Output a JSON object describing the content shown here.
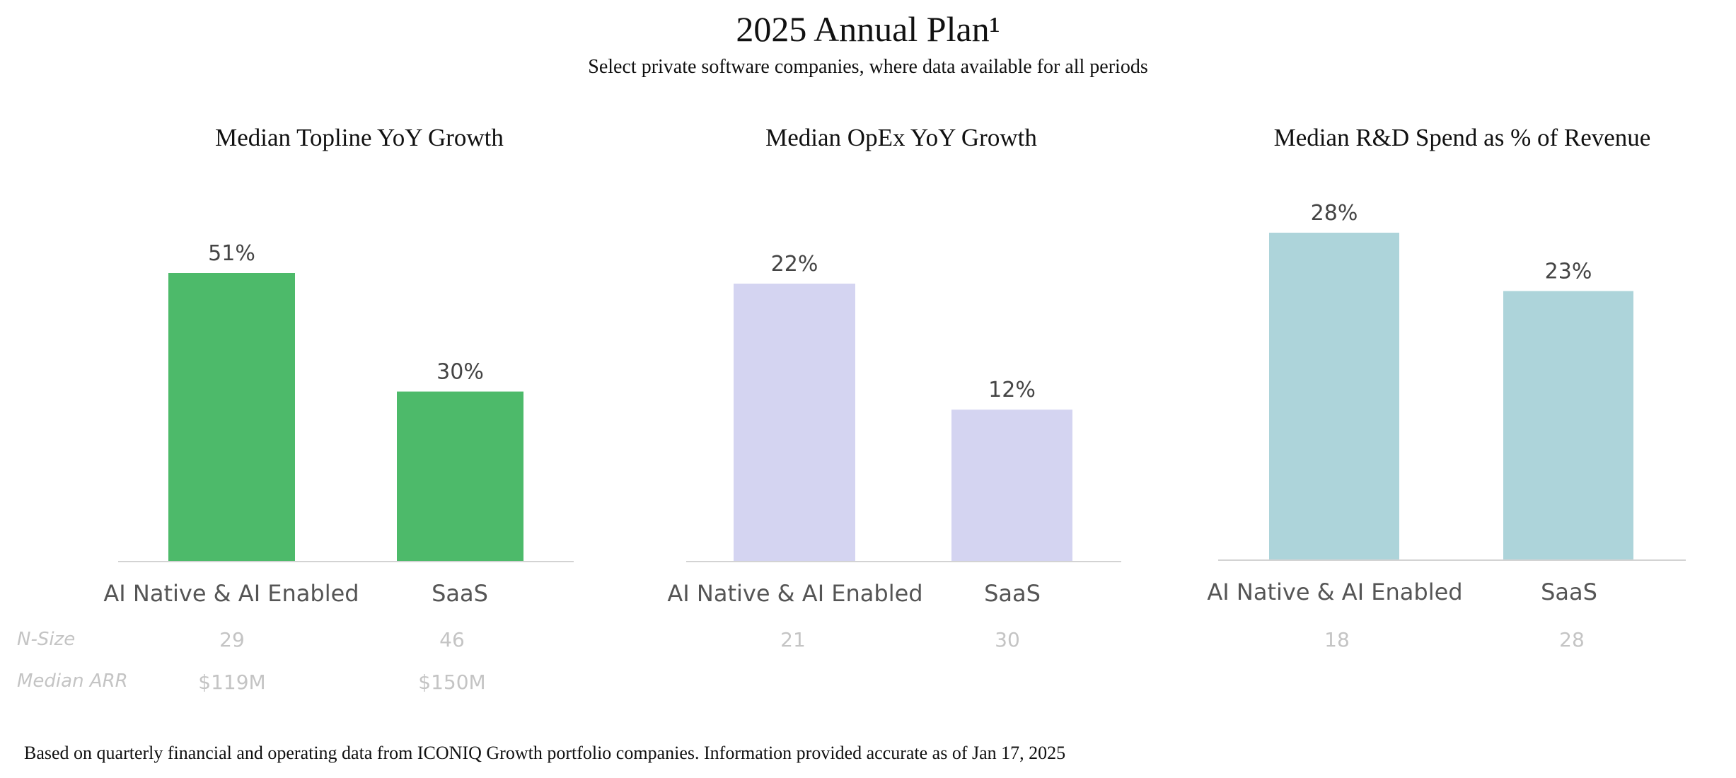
{
  "title": "2025 Annual Plan¹",
  "subtitle": "Select private software companies, where data available for all periods",
  "footnote": "Based on quarterly financial and operating data from ICONIQ Growth portfolio companies. Information provided accurate as of Jan 17, 2025",
  "row_labels": {
    "n_size": "N-Size",
    "median_arr": "Median ARR"
  },
  "chart_data": [
    {
      "type": "bar",
      "title": "Median Topline YoY Growth",
      "categories": [
        "AI Native & AI Enabled",
        "SaaS"
      ],
      "values": [
        51,
        30
      ],
      "value_labels": [
        "51%",
        "30%"
      ],
      "ylim": [
        0,
        51
      ],
      "color": "#4dba6a",
      "n_size": [
        "29",
        "46"
      ],
      "median_arr": [
        "$119M",
        "$150M"
      ]
    },
    {
      "type": "bar",
      "title": "Median OpEx YoY Growth",
      "categories": [
        "AI Native & AI Enabled",
        "SaaS"
      ],
      "values": [
        22,
        12
      ],
      "value_labels": [
        "22%",
        "12%"
      ],
      "ylim": [
        0,
        22
      ],
      "color": "#d4d4f1",
      "n_size": [
        "21",
        "30"
      ]
    },
    {
      "type": "bar",
      "title": "Median R&D Spend as % of Revenue",
      "categories": [
        "AI Native & AI Enabled",
        "SaaS"
      ],
      "values": [
        28,
        23
      ],
      "value_labels": [
        "28%",
        "23%"
      ],
      "ylim": [
        0,
        28
      ],
      "color": "#add4da",
      "n_size": [
        "18",
        "28"
      ]
    }
  ]
}
